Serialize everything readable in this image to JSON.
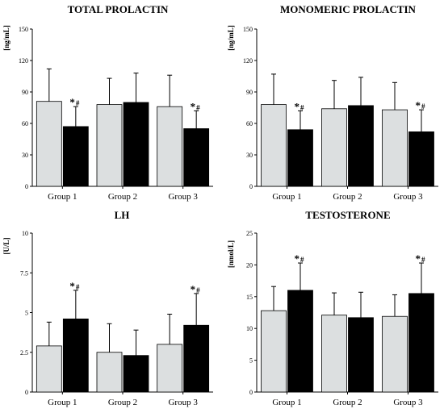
{
  "colors": {
    "light": "#dcdfe0",
    "dark": "#000000",
    "axis": "#000000"
  },
  "chart_data": [
    {
      "type": "bar",
      "title": "TOTAL PROLACTIN",
      "ylabel": "[ng/mL]",
      "ylim": [
        0,
        150
      ],
      "yticks": [
        "0",
        "30",
        "60",
        "90",
        "120",
        "150"
      ],
      "categories": [
        "Group 1",
        "Group 2",
        "Group 3"
      ],
      "series": [
        {
          "values": [
            81,
            78,
            76
          ],
          "errors": [
            31,
            25,
            30
          ]
        },
        {
          "values": [
            57,
            80,
            55
          ],
          "errors": [
            19,
            28,
            17
          ]
        }
      ],
      "annotations": [
        {
          "group": 0,
          "series": 1,
          "text": "*",
          "sub": "#"
        },
        {
          "group": 2,
          "series": 1,
          "text": "*",
          "sub": "#"
        }
      ]
    },
    {
      "type": "bar",
      "title": "MONOMERIC PROLACTIN",
      "ylabel": "[ng/mL]",
      "ylim": [
        0,
        150
      ],
      "yticks": [
        "0",
        "30",
        "60",
        "90",
        "120",
        "150"
      ],
      "categories": [
        "Group 1",
        "Group 2",
        "Group 3"
      ],
      "series": [
        {
          "values": [
            78,
            74,
            73
          ],
          "errors": [
            29,
            27,
            26
          ]
        },
        {
          "values": [
            54,
            77,
            52
          ],
          "errors": [
            18,
            27,
            21
          ]
        }
      ],
      "annotations": [
        {
          "group": 0,
          "series": 1,
          "text": "*",
          "sub": "#"
        },
        {
          "group": 2,
          "series": 1,
          "text": "*",
          "sub": "#"
        }
      ]
    },
    {
      "type": "bar",
      "title": "LH",
      "ylabel": "[U/L]",
      "ylim": [
        0,
        10
      ],
      "yticks": [
        "0",
        "2.5",
        "5",
        "7.5",
        "10"
      ],
      "categories": [
        "Group 1",
        "Group 2",
        "Group 3"
      ],
      "series": [
        {
          "values": [
            2.9,
            2.5,
            3.0
          ],
          "errors": [
            1.5,
            1.8,
            1.9
          ]
        },
        {
          "values": [
            4.6,
            2.3,
            4.2
          ],
          "errors": [
            1.8,
            1.6,
            2.0
          ]
        }
      ],
      "annotations": [
        {
          "group": 0,
          "series": 1,
          "text": "*",
          "sub": "#"
        },
        {
          "group": 2,
          "series": 1,
          "text": "*",
          "sub": "#"
        }
      ]
    },
    {
      "type": "bar",
      "title": "TESTOSTERONE",
      "ylabel": "[nmol/L]",
      "ylim": [
        0,
        25
      ],
      "yticks": [
        "0",
        "5",
        "10",
        "15",
        "20",
        "25"
      ],
      "categories": [
        "Group 1",
        "Group 2",
        "Group 3"
      ],
      "series": [
        {
          "values": [
            12.8,
            12.1,
            11.9
          ],
          "errors": [
            3.8,
            3.5,
            3.4
          ]
        },
        {
          "values": [
            16.0,
            11.7,
            15.5
          ],
          "errors": [
            4.3,
            4.0,
            4.8
          ]
        }
      ],
      "annotations": [
        {
          "group": 0,
          "series": 1,
          "text": "*",
          "sub": "#"
        },
        {
          "group": 2,
          "series": 1,
          "text": "*",
          "sub": "#"
        }
      ]
    }
  ]
}
